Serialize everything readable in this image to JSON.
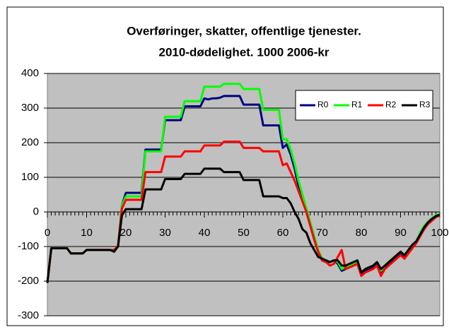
{
  "chart_data": {
    "type": "line",
    "title": "Overføringer, skatter, offentlige tjenester.",
    "subtitle": "2010-dødelighet. 1000 2006-kr",
    "x": [
      0,
      1,
      2,
      3,
      4,
      5,
      6,
      7,
      8,
      9,
      10,
      11,
      12,
      13,
      14,
      15,
      16,
      17,
      18,
      19,
      20,
      21,
      22,
      23,
      24,
      25,
      26,
      27,
      28,
      29,
      30,
      31,
      32,
      33,
      34,
      35,
      36,
      37,
      38,
      39,
      40,
      41,
      42,
      43,
      44,
      45,
      46,
      47,
      48,
      49,
      50,
      51,
      52,
      53,
      54,
      55,
      56,
      57,
      58,
      59,
      60,
      61,
      62,
      63,
      64,
      65,
      66,
      67,
      68,
      69,
      70,
      71,
      72,
      73,
      74,
      75,
      76,
      77,
      78,
      79,
      80,
      81,
      82,
      83,
      84,
      85,
      86,
      87,
      88,
      89,
      90,
      91,
      92,
      93,
      94,
      95,
      96,
      97,
      98,
      99,
      100
    ],
    "series": [
      {
        "name": "R0",
        "color": "#000080",
        "values": [
          -205,
          -105,
          -105,
          -105,
          -105,
          -105,
          -120,
          -120,
          -120,
          -120,
          -110,
          -110,
          -110,
          -110,
          -110,
          -110,
          -110,
          -110,
          -100,
          20,
          55,
          55,
          55,
          55,
          55,
          180,
          180,
          180,
          180,
          180,
          265,
          265,
          265,
          265,
          265,
          305,
          305,
          305,
          305,
          305,
          328,
          325,
          328,
          328,
          330,
          335,
          335,
          335,
          335,
          335,
          310,
          310,
          310,
          310,
          310,
          250,
          250,
          250,
          250,
          250,
          185,
          195,
          165,
          125,
          75,
          35,
          0,
          -40,
          -80,
          -115,
          -140,
          -145,
          -145,
          -140,
          -150,
          -170,
          -165,
          -160,
          -155,
          -150,
          -180,
          -170,
          -165,
          -160,
          -150,
          -175,
          -160,
          -150,
          -140,
          -130,
          -120,
          -130,
          -115,
          -100,
          -90,
          -70,
          -50,
          -35,
          -25,
          -15,
          -10
        ]
      },
      {
        "name": "R1",
        "color": "#00ff00",
        "values": [
          -205,
          -105,
          -105,
          -105,
          -105,
          -105,
          -120,
          -120,
          -120,
          -120,
          -110,
          -110,
          -110,
          -110,
          -110,
          -110,
          -110,
          -110,
          -100,
          20,
          45,
          45,
          45,
          45,
          45,
          175,
          175,
          175,
          175,
          175,
          275,
          275,
          275,
          275,
          275,
          320,
          320,
          320,
          320,
          320,
          362,
          362,
          362,
          362,
          362,
          370,
          370,
          370,
          370,
          370,
          355,
          355,
          355,
          355,
          355,
          295,
          295,
          295,
          295,
          295,
          210,
          210,
          180,
          140,
          90,
          50,
          10,
          -30,
          -70,
          -110,
          -135,
          -140,
          -145,
          -140,
          -145,
          -165,
          -160,
          -155,
          -150,
          -145,
          -175,
          -165,
          -160,
          -155,
          -145,
          -170,
          -155,
          -145,
          -135,
          -125,
          -115,
          -125,
          -110,
          -95,
          -85,
          -60,
          -40,
          -28,
          -18,
          -10,
          -5
        ]
      },
      {
        "name": "R2",
        "color": "#ff0000",
        "values": [
          -205,
          -105,
          -105,
          -105,
          -105,
          -105,
          -120,
          -120,
          -120,
          -120,
          -110,
          -110,
          -110,
          -110,
          -110,
          -110,
          -110,
          -110,
          -100,
          10,
          35,
          35,
          35,
          35,
          35,
          115,
          115,
          115,
          115,
          115,
          160,
          160,
          160,
          160,
          160,
          175,
          175,
          175,
          175,
          175,
          192,
          192,
          192,
          192,
          192,
          203,
          203,
          203,
          203,
          203,
          185,
          185,
          185,
          185,
          185,
          175,
          175,
          175,
          175,
          175,
          135,
          140,
          115,
          90,
          60,
          30,
          0,
          -40,
          -80,
          -115,
          -140,
          -145,
          -155,
          -150,
          -130,
          -110,
          -165,
          -160,
          -155,
          -150,
          -185,
          -175,
          -170,
          -165,
          -155,
          -185,
          -165,
          -155,
          -145,
          -135,
          -125,
          -135,
          -120,
          -105,
          -90,
          -70,
          -50,
          -35,
          -25,
          -15,
          -10
        ]
      },
      {
        "name": "R3",
        "color": "#000000",
        "values": [
          -205,
          -105,
          -105,
          -105,
          -105,
          -105,
          -120,
          -120,
          -120,
          -120,
          -110,
          -110,
          -110,
          -110,
          -110,
          -110,
          -110,
          -115,
          -100,
          -10,
          8,
          8,
          8,
          8,
          8,
          65,
          65,
          65,
          65,
          65,
          95,
          95,
          95,
          95,
          95,
          110,
          110,
          110,
          110,
          110,
          125,
          125,
          125,
          125,
          125,
          115,
          115,
          115,
          115,
          115,
          92,
          92,
          92,
          92,
          92,
          45,
          45,
          45,
          45,
          45,
          40,
          40,
          25,
          0,
          -20,
          -50,
          -60,
          -90,
          -110,
          -130,
          -135,
          -140,
          -145,
          -140,
          -140,
          -155,
          -155,
          -150,
          -145,
          -140,
          -175,
          -165,
          -160,
          -155,
          -145,
          -165,
          -155,
          -145,
          -135,
          -125,
          -115,
          -125,
          -110,
          -95,
          -85,
          -65,
          -45,
          -30,
          -20,
          -12,
          -8
        ]
      }
    ],
    "xlim": [
      0,
      100
    ],
    "xticks": [
      0,
      10,
      20,
      30,
      40,
      50,
      60,
      70,
      80,
      90,
      100
    ],
    "ylim": [
      -300,
      400
    ],
    "yticks": [
      -300,
      -200,
      -100,
      0,
      100,
      200,
      300,
      400
    ],
    "grid": true,
    "legend": "upper right"
  }
}
